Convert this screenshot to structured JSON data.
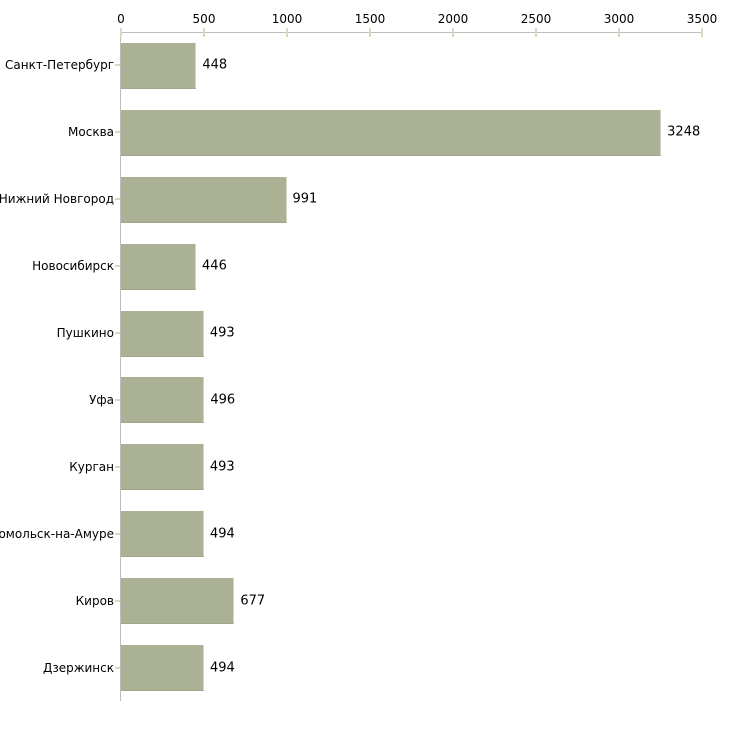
{
  "chart_data": {
    "type": "bar",
    "orientation": "horizontal",
    "title": "",
    "xlabel": "",
    "ylabel": "",
    "categories": [
      "Санкт-Петербург",
      "Москва",
      "Нижний Новгород",
      "Новосибирск",
      "Пушкино",
      "Уфа",
      "Курган",
      "мсомольск-на-Амуре",
      "Киров",
      "Дзержинск"
    ],
    "values": [
      448,
      3248,
      991,
      446,
      493,
      496,
      493,
      494,
      677,
      494
    ],
    "value_labels": [
      "448",
      "3248",
      "991",
      "446",
      "493",
      "496",
      "493",
      "494",
      "677",
      "494"
    ],
    "x_ticks": [
      "0",
      "500",
      "1000",
      "1500",
      "2000",
      "2500",
      "3000",
      "3500"
    ],
    "x_tick_values": [
      0,
      500,
      1000,
      1500,
      2000,
      2500,
      3000,
      3500
    ],
    "xlim": [
      0,
      3500
    ],
    "grid": false,
    "legend": "none",
    "colors": {
      "bar": "#abb194",
      "axis_line": "#bdbdbd",
      "tick_mark": "#d7dabc",
      "text": "#000000",
      "background": "#ffffff"
    }
  }
}
